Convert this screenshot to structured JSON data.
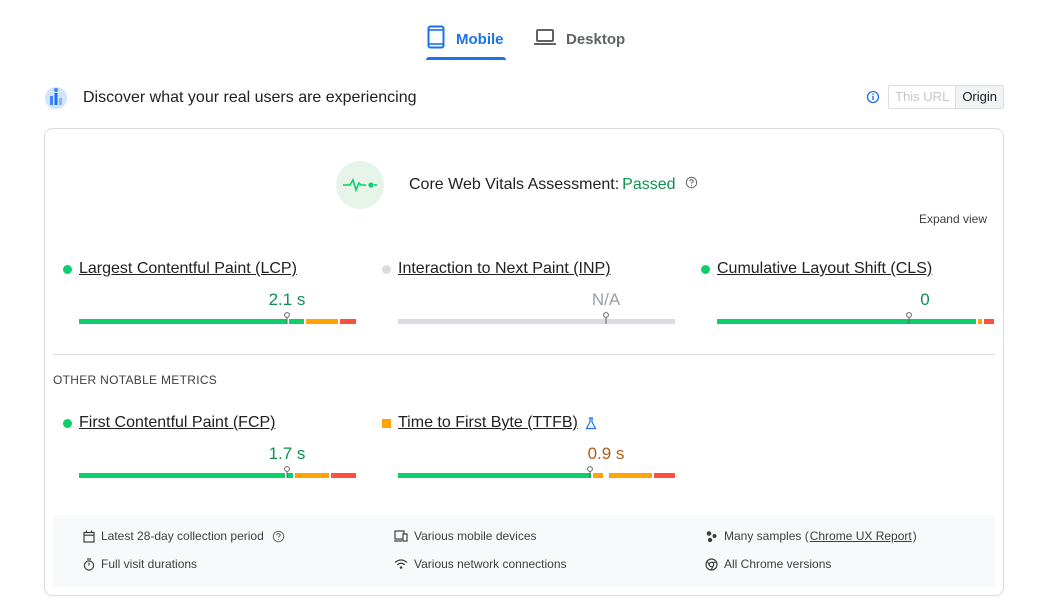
{
  "tabs": [
    {
      "label": "Mobile",
      "active": true
    },
    {
      "label": "Desktop",
      "active": false
    }
  ],
  "header": {
    "title": "Discover what your real users are experiencing",
    "toggle": {
      "this_url": "This URL",
      "origin": "Origin",
      "selected": "Origin"
    }
  },
  "assessment": {
    "label": "Core Web Vitals Assessment:",
    "status": "Passed",
    "expand": "Expand view"
  },
  "core_metrics": [
    {
      "name": "Largest Contentful Paint (LCP)",
      "value": "2.1 s",
      "status": "good",
      "marker": 0.75
    },
    {
      "name": "Interaction to Next Paint (INP)",
      "value": "N/A",
      "status": "na",
      "marker": 0.75
    },
    {
      "name": "Cumulative Layout Shift (CLS)",
      "value": "0",
      "status": "good",
      "marker": 0.75
    }
  ],
  "other": {
    "title": "OTHER NOTABLE METRICS",
    "metrics": [
      {
        "name": "First Contentful Paint (FCP)",
        "value": "1.7 s",
        "status": "good",
        "marker": 0.75
      },
      {
        "name": "Time to First Byte (TTFB)",
        "value": "0.9 s",
        "status": "average",
        "marker": 0.75
      }
    ]
  },
  "footer": {
    "period": "Latest 28-day collection period",
    "devices": "Various mobile devices",
    "samples_prefix": "Many samples (",
    "samples_link": "Chrome UX Report",
    "samples_suffix": ")",
    "durations": "Full visit durations",
    "network": "Various network connections",
    "versions": "All Chrome versions"
  },
  "colors": {
    "good": "#0cce6b",
    "good_text": "#0d904f",
    "average": "#ffa400",
    "average_text": "#b3591b",
    "poor": "#ff4e42",
    "na": "#dadce0",
    "accent": "#1a73e8"
  }
}
